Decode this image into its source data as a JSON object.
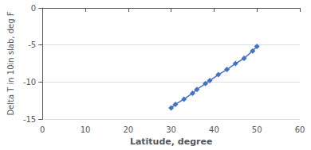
{
  "chart_data": {
    "type": "line",
    "x": [
      30,
      31,
      33,
      35,
      36,
      38,
      39,
      41,
      43,
      45,
      47,
      49,
      50
    ],
    "values": [
      -13.5,
      -13.0,
      -12.3,
      -11.5,
      -11.0,
      -10.2,
      -9.8,
      -9.0,
      -8.3,
      -7.5,
      -6.8,
      -5.8,
      -5.2
    ],
    "color": "#4472C4",
    "marker": "diamond",
    "xlabel": "Latitude, degree",
    "ylabel": "Delta T in 10in slab, deg F",
    "xlim": [
      0,
      60
    ],
    "ylim": [
      -15,
      0
    ],
    "xticks": [
      0,
      10,
      20,
      30,
      40,
      50,
      60
    ],
    "yticks": [
      0,
      -5,
      -10,
      -15
    ],
    "grid": true
  }
}
